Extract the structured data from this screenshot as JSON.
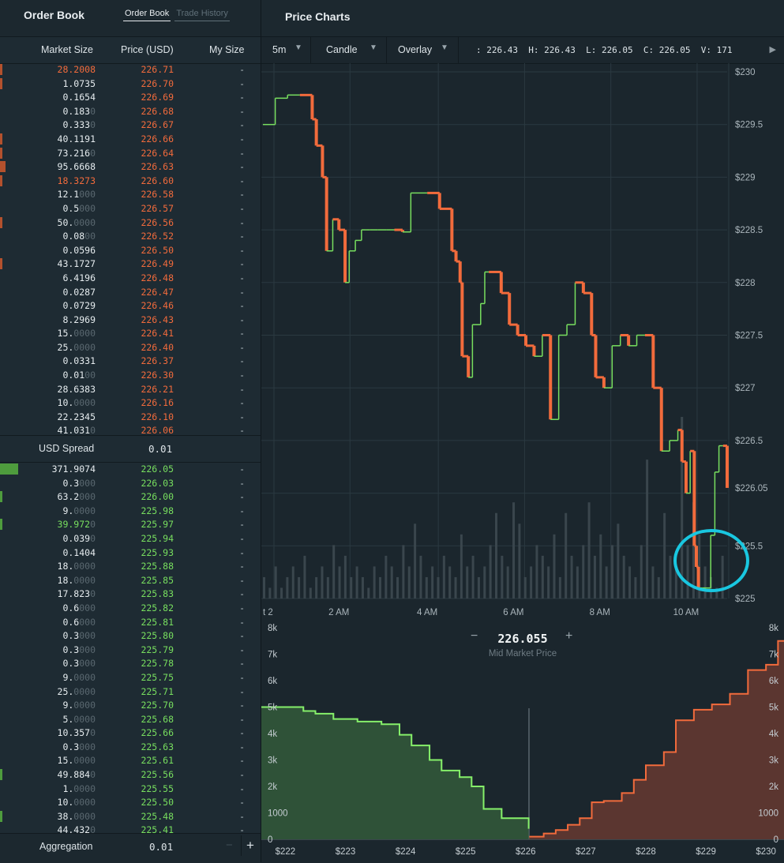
{
  "order_book": {
    "title": "Order Book",
    "tabs": [
      {
        "label": "Order Book"
      },
      {
        "label": "Trade History"
      }
    ],
    "columns": {
      "market_size": "Market Size",
      "price": "Price (USD)",
      "my_size": "My Size"
    },
    "asks": [
      {
        "size": "28.2008",
        "size_dim": "",
        "price": "226.71",
        "my": "-",
        "depth": 0.01
      },
      {
        "size": "1.0735",
        "size_dim": "",
        "price": "226.70",
        "my": "-",
        "depth": 0.01
      },
      {
        "size": "0.1654",
        "size_dim": "",
        "price": "226.69",
        "my": "-",
        "depth": 0.0
      },
      {
        "size": "0.183",
        "size_dim": "0",
        "price": "226.68",
        "my": "-",
        "depth": 0.0
      },
      {
        "size": "0.333",
        "size_dim": "0",
        "price": "226.67",
        "my": "-",
        "depth": 0.0
      },
      {
        "size": "40.1191",
        "size_dim": "",
        "price": "226.66",
        "my": "-",
        "depth": 0.01
      },
      {
        "size": "73.216",
        "size_dim": "0",
        "price": "226.64",
        "my": "-",
        "depth": 0.01
      },
      {
        "size": "95.6668",
        "size_dim": "",
        "price": "226.63",
        "my": "-",
        "depth": 0.02
      },
      {
        "size": "18.3273",
        "size_dim": "",
        "price": "226.60",
        "my": "-",
        "depth": 0.01
      },
      {
        "size": "12.1",
        "size_dim": "000",
        "price": "226.58",
        "my": "-",
        "depth": 0.0
      },
      {
        "size": "0.5",
        "size_dim": "000",
        "price": "226.57",
        "my": "-",
        "depth": 0.0
      },
      {
        "size": "50.",
        "size_dim": "0000",
        "price": "226.56",
        "my": "-",
        "depth": 0.01
      },
      {
        "size": "0.08",
        "size_dim": "00",
        "price": "226.52",
        "my": "-",
        "depth": 0.0
      },
      {
        "size": "0.0596",
        "size_dim": "",
        "price": "226.50",
        "my": "-",
        "depth": 0.0
      },
      {
        "size": "43.1727",
        "size_dim": "",
        "price": "226.49",
        "my": "-",
        "depth": 0.01
      },
      {
        "size": "6.4196",
        "size_dim": "",
        "price": "226.48",
        "my": "-",
        "depth": 0.0
      },
      {
        "size": "0.0287",
        "size_dim": "",
        "price": "226.47",
        "my": "-",
        "depth": 0.0
      },
      {
        "size": "0.0729",
        "size_dim": "",
        "price": "226.46",
        "my": "-",
        "depth": 0.0
      },
      {
        "size": "8.2969",
        "size_dim": "",
        "price": "226.43",
        "my": "-",
        "depth": 0.0
      },
      {
        "size": "15.",
        "size_dim": "0000",
        "price": "226.41",
        "my": "-",
        "depth": 0.0
      },
      {
        "size": "25.",
        "size_dim": "0000",
        "price": "226.40",
        "my": "-",
        "depth": 0.0
      },
      {
        "size": "0.0331",
        "size_dim": "",
        "price": "226.37",
        "my": "-",
        "depth": 0.0
      },
      {
        "size": "0.01",
        "size_dim": "00",
        "price": "226.30",
        "my": "-",
        "depth": 0.0
      },
      {
        "size": "28.6383",
        "size_dim": "",
        "price": "226.21",
        "my": "-",
        "depth": 0.0
      },
      {
        "size": "10.",
        "size_dim": "0000",
        "price": "226.16",
        "my": "-",
        "depth": 0.0
      },
      {
        "size": "22.2345",
        "size_dim": "",
        "price": "226.10",
        "my": "-",
        "depth": 0.0
      },
      {
        "size": "41.031",
        "size_dim": "0",
        "price": "226.06",
        "my": "-",
        "depth": 0.0
      }
    ],
    "spread": {
      "label": "USD Spread",
      "value": "0.01"
    },
    "bids": [
      {
        "size": "371.9074",
        "size_dim": "",
        "price": "226.05",
        "my": "-",
        "depth": 0.07
      },
      {
        "size": "0.3",
        "size_dim": "000",
        "price": "226.03",
        "my": "-",
        "depth": 0.0
      },
      {
        "size": "63.2",
        "size_dim": "000",
        "price": "226.00",
        "my": "-",
        "depth": 0.01
      },
      {
        "size": "9.",
        "size_dim": "0000",
        "price": "225.98",
        "my": "-",
        "depth": 0.0
      },
      {
        "size": "39.972",
        "size_dim": "0",
        "price": "225.97",
        "my": "-",
        "depth": 0.01
      },
      {
        "size": "0.039",
        "size_dim": "0",
        "price": "225.94",
        "my": "-",
        "depth": 0.0
      },
      {
        "size": "0.1404",
        "size_dim": "",
        "price": "225.93",
        "my": "-",
        "depth": 0.0
      },
      {
        "size": "18.",
        "size_dim": "0000",
        "price": "225.88",
        "my": "-",
        "depth": 0.0
      },
      {
        "size": "18.",
        "size_dim": "0000",
        "price": "225.85",
        "my": "-",
        "depth": 0.0
      },
      {
        "size": "17.823",
        "size_dim": "0",
        "price": "225.83",
        "my": "-",
        "depth": 0.0
      },
      {
        "size": "0.6",
        "size_dim": "000",
        "price": "225.82",
        "my": "-",
        "depth": 0.0
      },
      {
        "size": "0.6",
        "size_dim": "000",
        "price": "225.81",
        "my": "-",
        "depth": 0.0
      },
      {
        "size": "0.3",
        "size_dim": "000",
        "price": "225.80",
        "my": "-",
        "depth": 0.0
      },
      {
        "size": "0.3",
        "size_dim": "000",
        "price": "225.79",
        "my": "-",
        "depth": 0.0
      },
      {
        "size": "0.3",
        "size_dim": "000",
        "price": "225.78",
        "my": "-",
        "depth": 0.0
      },
      {
        "size": "9.",
        "size_dim": "0000",
        "price": "225.75",
        "my": "-",
        "depth": 0.0
      },
      {
        "size": "25.",
        "size_dim": "0000",
        "price": "225.71",
        "my": "-",
        "depth": 0.0
      },
      {
        "size": "9.",
        "size_dim": "0000",
        "price": "225.70",
        "my": "-",
        "depth": 0.0
      },
      {
        "size": "5.",
        "size_dim": "0000",
        "price": "225.68",
        "my": "-",
        "depth": 0.0
      },
      {
        "size": "10.357",
        "size_dim": "0",
        "price": "225.66",
        "my": "-",
        "depth": 0.0
      },
      {
        "size": "0.3",
        "size_dim": "000",
        "price": "225.63",
        "my": "-",
        "depth": 0.0
      },
      {
        "size": "15.",
        "size_dim": "0000",
        "price": "225.61",
        "my": "-",
        "depth": 0.0
      },
      {
        "size": "49.884",
        "size_dim": "0",
        "price": "225.56",
        "my": "-",
        "depth": 0.01
      },
      {
        "size": "1.",
        "size_dim": "0000",
        "price": "225.55",
        "my": "-",
        "depth": 0.0
      },
      {
        "size": "10.",
        "size_dim": "0000",
        "price": "225.50",
        "my": "-",
        "depth": 0.0
      },
      {
        "size": "38.",
        "size_dim": "0000",
        "price": "225.48",
        "my": "-",
        "depth": 0.01
      },
      {
        "size": "44.432",
        "size_dim": "0",
        "price": "225.41",
        "my": "-",
        "depth": 0.0
      }
    ],
    "aggregation": {
      "label": "Aggregation",
      "value": "0.01",
      "minus": "−",
      "plus": "+"
    }
  },
  "price_charts": {
    "title": "Price Charts",
    "toolbar": {
      "interval": "5m",
      "chart_type": "Candle",
      "overlay": "Overlay",
      "ohlc": ": 226.43  H: 226.43  L: 226.05  C: 226.05  V: 171"
    },
    "mid_market": {
      "value": "226.055",
      "label": "Mid Market Price",
      "minus": "−",
      "plus": "+"
    }
  },
  "colors": {
    "up": "#78df5f",
    "down": "#f26b3c",
    "highlight": "#19c7e0"
  },
  "icons": [
    "chevron-down-icon",
    "play-icon",
    "minus-icon",
    "plus-icon"
  ],
  "chart_data": [
    {
      "type": "line",
      "y_axis_ticks": [
        "$230",
        "$229.5",
        "$229",
        "$228.5",
        "$228",
        "$227.5",
        "$227",
        "$226.5",
        "$226.05",
        "$225.5",
        "$225"
      ],
      "x_axis_ticks": [
        "t 2",
        "2 AM",
        "4 AM",
        "6 AM",
        "8 AM",
        "10 AM"
      ],
      "ylim": [
        225,
        230
      ],
      "current_price": 226.05,
      "series": [
        {
          "x": [
            0.0,
            0.3,
            0.6,
            0.9,
            1.2,
            1.3,
            1.45,
            1.55,
            1.7,
            1.85,
            2.0,
            2.1,
            2.25,
            2.4,
            2.5,
            2.6,
            2.8,
            3.0,
            3.2,
            3.4,
            3.6,
            3.7,
            4.0,
            4.3,
            4.6,
            4.7,
            4.8,
            4.85,
            5.0,
            5.1,
            5.3,
            5.4,
            5.5,
            5.8,
            6.0,
            6.2,
            6.4,
            6.6,
            6.8,
            7.0,
            7.2,
            7.4,
            7.6,
            7.8,
            8.0,
            8.1,
            8.3,
            8.5,
            8.7,
            8.9,
            9.1,
            9.3,
            9.5,
            9.7,
            9.9,
            10.1,
            10.2,
            10.3,
            10.4,
            10.5,
            10.55,
            10.6,
            10.7,
            10.8,
            10.9,
            11.0,
            11.1,
            11.2,
            11.3
          ],
          "y": [
            229.5,
            229.75,
            229.78,
            229.78,
            229.55,
            229.3,
            229.0,
            228.3,
            228.6,
            228.5,
            228.0,
            228.3,
            228.4,
            228.5,
            228.5,
            228.5,
            228.5,
            228.5,
            228.5,
            228.48,
            228.85,
            228.85,
            228.85,
            228.7,
            228.3,
            228.2,
            228.0,
            227.3,
            227.1,
            227.6,
            227.8,
            228.1,
            228.1,
            227.9,
            227.6,
            227.5,
            227.4,
            227.3,
            227.5,
            226.7,
            227.5,
            227.6,
            228.0,
            227.9,
            227.5,
            227.1,
            227.0,
            227.4,
            227.5,
            227.4,
            227.5,
            227.5,
            227.0,
            226.4,
            226.5,
            226.6,
            226.3,
            226.0,
            226.4,
            225.5,
            225.3,
            225.1,
            225.1,
            225.1,
            225.6,
            226.2,
            226.45,
            226.45,
            226.05
          ]
        }
      ],
      "volume": [
        2,
        1,
        3,
        1,
        2,
        3,
        2,
        4,
        1,
        2,
        3,
        2,
        5,
        3,
        4,
        2,
        3,
        2,
        1,
        3,
        2,
        4,
        3,
        2,
        5,
        3,
        7,
        4,
        2,
        3,
        2,
        4,
        3,
        2,
        6,
        3,
        4,
        2,
        3,
        5,
        8,
        4,
        3,
        9,
        7,
        2,
        3,
        5,
        4,
        3,
        6,
        2,
        8,
        4,
        3,
        5,
        9,
        4,
        6,
        3,
        5,
        7,
        4,
        3,
        2,
        5,
        13,
        3,
        2,
        8,
        4,
        3,
        17,
        5,
        9,
        6,
        3,
        2,
        1,
        4
      ]
    },
    {
      "type": "area",
      "x_axis_ticks": [
        "$222",
        "$223",
        "$224",
        "$225",
        "$226",
        "$227",
        "$228",
        "$229",
        "$230"
      ],
      "y_axis_ticks": [
        "0",
        "1000",
        "2k",
        "3k",
        "4k",
        "5k",
        "6k",
        "7k",
        "8k"
      ],
      "ylim": [
        0,
        8000
      ],
      "series": [
        {
          "name": "bids",
          "x": [
            222.0,
            222.3,
            222.5,
            222.8,
            223.2,
            223.6,
            223.9,
            224.1,
            224.4,
            224.6,
            224.9,
            225.1,
            225.3,
            225.6,
            226.05
          ],
          "y": [
            5000,
            4850,
            4750,
            4550,
            4450,
            4350,
            3950,
            3550,
            3000,
            2600,
            2350,
            2000,
            1150,
            800,
            400
          ]
        },
        {
          "name": "asks",
          "x": [
            226.06,
            226.3,
            226.5,
            226.7,
            226.9,
            227.1,
            227.3,
            227.6,
            227.8,
            228.0,
            228.3,
            228.5,
            228.8,
            229.1,
            229.4,
            229.7,
            230.0,
            230.2
          ],
          "y": [
            100,
            220,
            350,
            550,
            800,
            1400,
            1450,
            1750,
            2250,
            2800,
            3300,
            4500,
            4900,
            5100,
            5500,
            6400,
            6600,
            7500
          ]
        }
      ]
    }
  ]
}
